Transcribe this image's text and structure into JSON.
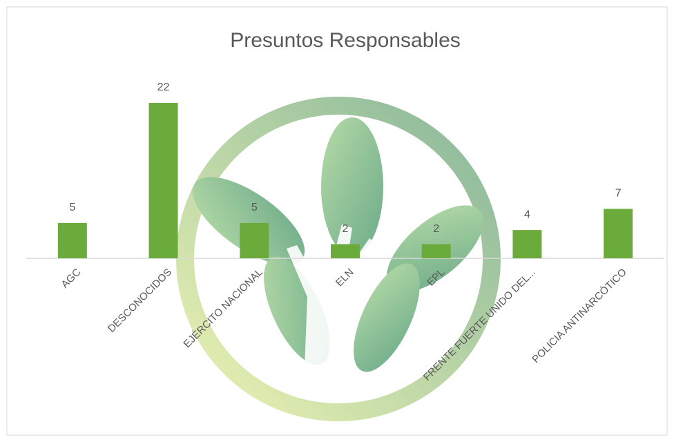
{
  "chart_data": {
    "type": "bar",
    "title": "Presuntos Responsables",
    "categories": [
      "AGC",
      "DESCONOCIDOS",
      "EJÉRCITO NACIONAL",
      "ELN",
      "EPL",
      "FRENTE FUERTE UNIDO DEL...",
      "POLICIA ANTINARCÓTICO"
    ],
    "values": [
      5,
      22,
      5,
      2,
      2,
      4,
      7
    ],
    "color": "#6aab3c",
    "grid": false
  }
}
